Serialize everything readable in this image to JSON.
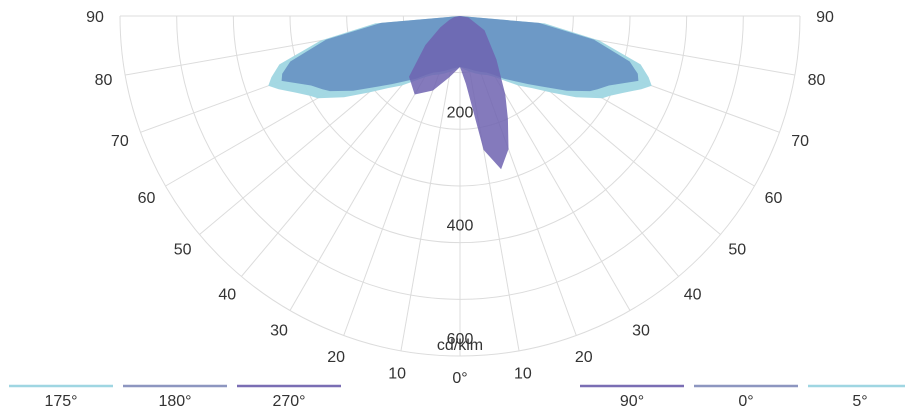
{
  "chart_data": {
    "type": "polar-area",
    "unit_label": "cd/klm",
    "radial_ticks": [
      "200",
      "400",
      "600"
    ],
    "radial_max": 600,
    "angle_ticks_left": [
      "90",
      "80",
      "70",
      "60",
      "50",
      "40",
      "30",
      "20",
      "10"
    ],
    "angle_ticks_right": [
      "90",
      "80",
      "70",
      "60",
      "50",
      "40",
      "30",
      "20",
      "10"
    ],
    "angle_zero_label": "0°",
    "series": [
      {
        "name": "175°",
        "color": "#9fd6e2",
        "angles": [
          -90,
          -85,
          -80,
          -75,
          -72,
          -70,
          -68,
          -65,
          -62,
          -60,
          -55,
          -50,
          -45,
          -40,
          -35,
          -30,
          -25,
          -20,
          -15,
          -10,
          -5,
          0,
          5,
          10,
          15,
          20,
          25,
          30,
          35,
          40,
          45,
          50,
          55,
          60,
          62,
          65,
          68,
          70,
          72,
          75,
          80,
          85,
          90
        ],
        "values": [
          0,
          150,
          250,
          330,
          350,
          360,
          345,
          320,
          300,
          290,
          250,
          210,
          180,
          160,
          140,
          125,
          115,
          110,
          105,
          100,
          95,
          90,
          95,
          100,
          105,
          110,
          115,
          125,
          140,
          160,
          180,
          210,
          250,
          290,
          300,
          320,
          345,
          360,
          350,
          330,
          250,
          150,
          0
        ]
      },
      {
        "name": "180°",
        "color": "#6a96c4",
        "angles": [
          -90,
          -85,
          -80,
          -75,
          -72,
          -70,
          -68,
          -65,
          -62,
          -60,
          -55,
          -50,
          -45,
          -40,
          -35,
          -30,
          -25,
          -20,
          -15,
          -10,
          -5,
          0,
          5,
          10,
          15,
          20,
          25,
          30,
          35,
          40,
          45,
          50,
          55,
          60,
          62,
          65,
          68,
          70,
          72,
          75,
          80,
          85,
          90
        ],
        "values": [
          0,
          140,
          240,
          310,
          330,
          335,
          315,
          290,
          275,
          265,
          230,
          195,
          170,
          150,
          135,
          120,
          110,
          105,
          100,
          95,
          92,
          90,
          92,
          95,
          100,
          105,
          110,
          120,
          135,
          150,
          170,
          195,
          230,
          265,
          275,
          290,
          315,
          335,
          330,
          310,
          240,
          140,
          0
        ]
      },
      {
        "name": "270°",
        "color": "#6e63b0",
        "angles": [
          -90,
          -80,
          -70,
          -60,
          -50,
          -40,
          -30,
          -20,
          -10,
          0,
          5,
          10,
          15,
          20,
          25,
          30,
          40,
          60,
          80,
          90
        ],
        "values": [
          0,
          10,
          20,
          40,
          80,
          140,
          160,
          140,
          110,
          90,
          120,
          240,
          280,
          250,
          200,
          160,
          100,
          50,
          15,
          0
        ]
      }
    ],
    "legend": [
      {
        "name": "175°",
        "color": "#9fd6e2",
        "position": "bottom-left"
      },
      {
        "name": "180°",
        "color": "#8d96c0",
        "position": "bottom-left"
      },
      {
        "name": "270°",
        "color": "#7a6eb4",
        "position": "bottom-left"
      },
      {
        "name": "90°",
        "color": "#7a6eb4",
        "position": "bottom-right"
      },
      {
        "name": "0°",
        "color": "#8d96c0",
        "position": "bottom-right"
      },
      {
        "name": "5°",
        "color": "#9fd6e2",
        "position": "bottom-right"
      }
    ],
    "grid": true
  }
}
